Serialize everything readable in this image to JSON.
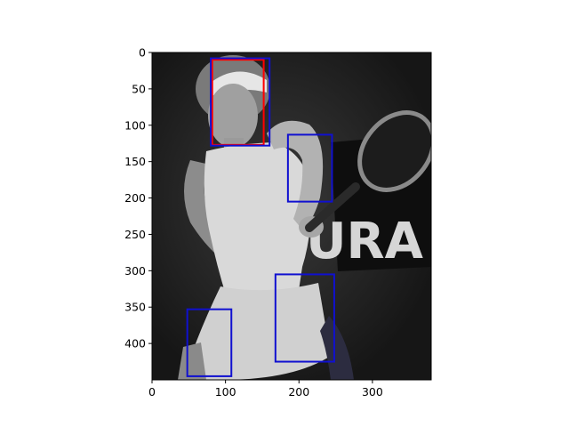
{
  "chart_data": {
    "type": "image",
    "image_extent": {
      "x": [
        0,
        380
      ],
      "y": [
        450,
        0
      ]
    },
    "xlim": [
      0,
      380
    ],
    "ylim": [
      450,
      0
    ],
    "x_ticks": [
      0,
      100,
      200,
      300
    ],
    "y_ticks": [
      0,
      50,
      100,
      150,
      200,
      250,
      300,
      350,
      400
    ],
    "x_tick_labels": [
      "0",
      "100",
      "200",
      "300"
    ],
    "y_tick_labels": [
      "0",
      "50",
      "100",
      "150",
      "200",
      "250",
      "300",
      "350",
      "400"
    ],
    "grid": false,
    "colormap": "gray",
    "image_text": "CURA",
    "boxes": [
      {
        "label": "",
        "color": "#ff0000",
        "x0": 82,
        "y0": 10,
        "x1": 152,
        "y1": 127
      },
      {
        "label": "",
        "color": "#1010d0",
        "x0": 80,
        "y0": 8,
        "x1": 160,
        "y1": 128
      },
      {
        "label": "",
        "color": "#1010d0",
        "x0": 185,
        "y0": 113,
        "x1": 245,
        "y1": 205
      },
      {
        "label": "",
        "color": "#1010d0",
        "x0": 168,
        "y0": 305,
        "x1": 248,
        "y1": 425
      },
      {
        "label": "",
        "color": "#1010d0",
        "x0": 48,
        "y0": 353,
        "x1": 108,
        "y1": 445
      }
    ]
  }
}
